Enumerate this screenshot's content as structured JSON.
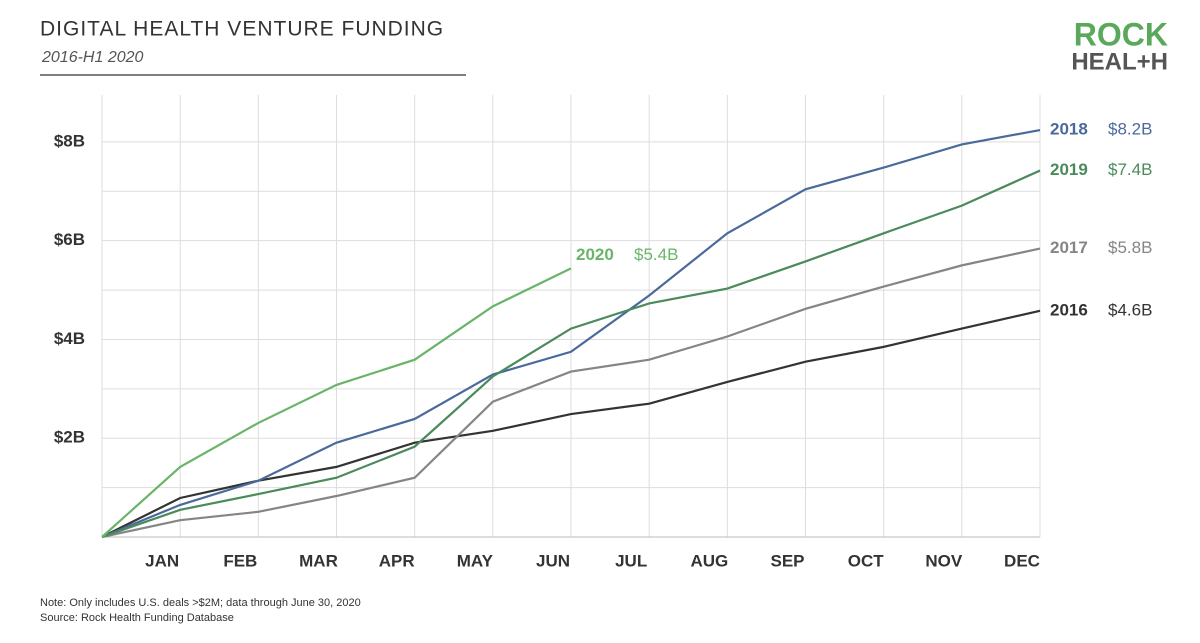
{
  "chart_data": {
    "type": "line",
    "title": "DIGITAL HEALTH VENTURE FUNDING",
    "subtitle": "2016-H1 2020",
    "logo": {
      "top": "ROCK",
      "bottom": "HEAL+H"
    },
    "note": "Note: Only includes U.S. deals >$2M; data through June 30, 2020",
    "source": "Source: Rock Health Funding Database",
    "categories": [
      null,
      "JAN",
      "FEB",
      "MAR",
      "APR",
      "MAY",
      "JUN",
      "JUL",
      "AUG",
      "SEP",
      "OCT",
      "NOV",
      "DEC"
    ],
    "ylim": [
      0,
      8.95
    ],
    "yticks": [
      {
        "value": 2,
        "label": "$2B"
      },
      {
        "value": 4,
        "label": "$4B"
      },
      {
        "value": 6,
        "label": "$6B"
      },
      {
        "value": 8,
        "label": "$8B"
      }
    ],
    "minor_yticks": [
      1,
      3,
      5,
      7
    ],
    "grid": true,
    "series": [
      {
        "name": "2016",
        "color": "#333333",
        "end_label": "$4.6B",
        "values": [
          0,
          0.79,
          1.14,
          1.42,
          1.91,
          2.15,
          2.49,
          2.7,
          3.14,
          3.55,
          3.85,
          4.22,
          4.58
        ]
      },
      {
        "name": "2017",
        "color": "#858585",
        "end_label": "$5.8B",
        "values": [
          0,
          0.34,
          0.51,
          0.83,
          1.2,
          2.74,
          3.35,
          3.59,
          4.06,
          4.62,
          5.07,
          5.5,
          5.84
        ]
      },
      {
        "name": "2018",
        "color": "#4b6a9b",
        "end_label": "$8.2B",
        "values": [
          0,
          0.65,
          1.14,
          1.91,
          2.39,
          3.29,
          3.75,
          4.89,
          6.15,
          7.04,
          7.48,
          7.95,
          8.24
        ]
      },
      {
        "name": "2019",
        "color": "#4a8a5c",
        "end_label": "$7.4B",
        "values": [
          0,
          0.55,
          0.87,
          1.2,
          1.83,
          3.25,
          4.22,
          4.73,
          5.03,
          5.58,
          6.15,
          6.71,
          7.42
        ]
      },
      {
        "name": "2020",
        "color": "#6ab46a",
        "end_label": "$5.4B",
        "values": [
          0,
          1.42,
          2.31,
          3.08,
          3.59,
          4.67,
          5.44,
          null,
          null,
          null,
          null,
          null,
          null
        ]
      }
    ]
  }
}
